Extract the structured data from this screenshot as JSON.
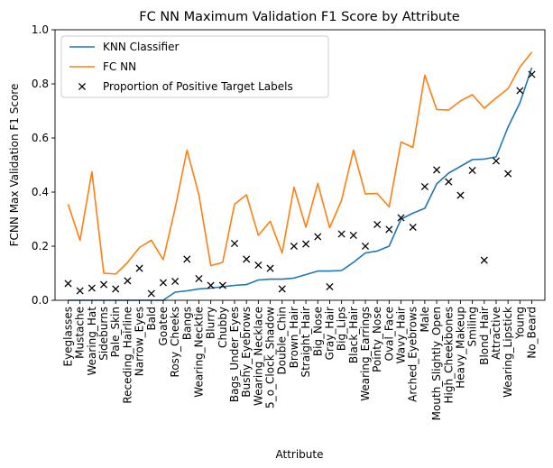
{
  "chart_data": {
    "type": "line",
    "title": "FC NN Maximum Validation F1 Score by Attribute",
    "xlabel": "Attribute",
    "ylabel": "FCNN Max Validation F1 Score",
    "ylim": [
      0,
      1
    ],
    "yticks": [
      0.0,
      0.2,
      0.4,
      0.6,
      0.8,
      1.0
    ],
    "ytick_labels": [
      "0.0",
      "0.2",
      "0.4",
      "0.6",
      "0.8",
      "1.0"
    ],
    "legend_position": "top-left",
    "grid": false,
    "categories": [
      "Eyeglasses",
      "Mustache",
      "Wearing_Hat",
      "Sideburns",
      "Pale_Skin",
      "Receding_Hairline",
      "Narrow_Eyes",
      "Bald",
      "Goatee",
      "Rosy_Cheeks",
      "Bangs",
      "Wearing_Necktie",
      "Blurry",
      "Chubby",
      "Bags_Under_Eyes",
      "Bushy_Eyebrows",
      "Wearing_Necklace",
      "5_o_Clock_Shadow",
      "Double_Chin",
      "Brown_Hair",
      "Straight_Hair",
      "Big_Nose",
      "Gray_Hair",
      "Big_Lips",
      "Black_Hair",
      "Wearing_Earrings",
      "Pointy_Nose",
      "Oval_Face",
      "Wavy_Hair",
      "Arched_Eyebrows",
      "Male",
      "Mouth_Slightly_Open",
      "High_Cheekbones",
      "Heavy_Makeup",
      "Smiling",
      "Blond_Hair",
      "Attractive",
      "Wearing_Lipstick",
      "Young",
      "No_Beard"
    ],
    "series": [
      {
        "name": "KNN Classifier",
        "kind": "line",
        "color": "#1f77b4",
        "values": [
          0.0,
          0.0,
          0.0,
          0.0,
          0.0,
          0.0,
          0.0,
          0.0,
          0.0,
          0.03,
          0.035,
          0.042,
          0.045,
          0.05,
          0.055,
          0.058,
          0.075,
          0.078,
          0.078,
          0.082,
          0.095,
          0.108,
          0.108,
          0.11,
          0.14,
          0.175,
          0.182,
          0.2,
          0.3,
          0.322,
          0.34,
          0.43,
          0.47,
          0.495,
          0.52,
          0.522,
          0.53,
          0.64,
          0.73,
          0.86
        ]
      },
      {
        "name": "FC NN",
        "kind": "line",
        "color": "#ff7f0e",
        "values": [
          0.355,
          0.222,
          0.475,
          0.1,
          0.097,
          0.14,
          0.195,
          0.222,
          0.15,
          0.34,
          0.555,
          0.39,
          0.128,
          0.14,
          0.355,
          0.39,
          0.24,
          0.292,
          0.175,
          0.418,
          0.27,
          0.432,
          0.268,
          0.37,
          0.555,
          0.393,
          0.395,
          0.345,
          0.585,
          0.565,
          0.832,
          0.705,
          0.703,
          0.737,
          0.76,
          0.71,
          0.748,
          0.782,
          0.862,
          0.917
        ]
      },
      {
        "name": "Proportion of Positive Target Labels",
        "kind": "marker",
        "marker": "x",
        "color": "#000000",
        "values": [
          0.062,
          0.035,
          0.045,
          0.058,
          0.042,
          0.072,
          0.118,
          0.025,
          0.065,
          0.07,
          0.152,
          0.08,
          0.055,
          0.055,
          0.21,
          0.152,
          0.13,
          0.118,
          0.042,
          0.2,
          0.208,
          0.235,
          0.05,
          0.245,
          0.24,
          0.2,
          0.28,
          0.262,
          0.305,
          0.27,
          0.42,
          0.482,
          0.438,
          0.388,
          0.48,
          0.148,
          0.515,
          0.468,
          0.775,
          0.835
        ]
      }
    ]
  }
}
